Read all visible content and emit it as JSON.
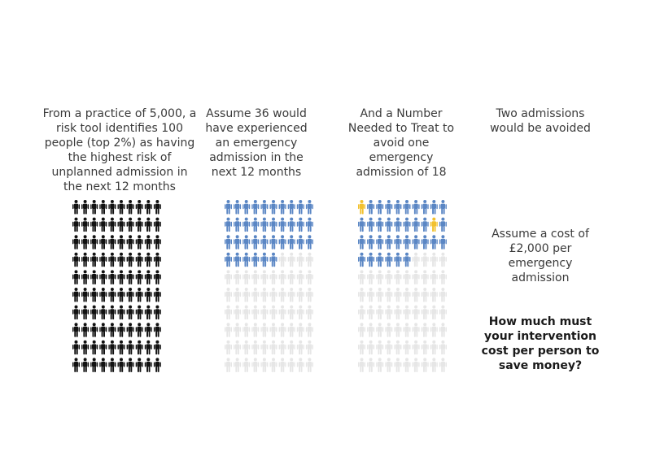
{
  "captions": {
    "practice": "From a practice of 5,000, a risk tool identifies 100 people (top 2%) as having the highest risk of unplanned admission in the next 12 months",
    "assume36": "Assume 36 would have experienced an emergency admission in the next 12 months",
    "nnt": "And a Number Needed to Treat to avoid one emergency admission of 18",
    "avoided": "Two admissions would be avoided",
    "cost": "Assume a cost of £2,000 per emergency admission",
    "question": "How much must your intervention cost per person to save money?"
  },
  "chart_data": [
    {
      "type": "pictogram",
      "total": 100,
      "groups": [
        {
          "count": 100,
          "color": "#111111"
        }
      ]
    },
    {
      "type": "pictogram",
      "total": 100,
      "groups": [
        {
          "count": 36,
          "color": "#5a86c4"
        },
        {
          "count": 64,
          "color": "#e6e6e6"
        }
      ]
    },
    {
      "type": "pictogram",
      "total": 100,
      "highlight_indices": [
        0,
        18
      ],
      "highlight_color": "#f2c12e",
      "groups": [
        {
          "count": 36,
          "color": "#5a86c4"
        },
        {
          "count": 64,
          "color": "#e6e6e6"
        }
      ]
    }
  ]
}
